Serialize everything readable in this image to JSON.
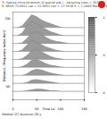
{
  "chart_data": {
    "type": "ridgeline",
    "title": "Tr. Sawica mine locations (4 special pat.) - sampling sites = 207",
    "subtitle": "R. KRUS 73.8911 Lat = 31.5051 Lon = 17.3516 S = 2.2889 Mstr. N2.6",
    "caption": "Median DT duration 26 s",
    "y_label": "Distance / Frequency Index (km)",
    "x_label": "Time (s)",
    "xlim": [
      0,
      150
    ],
    "xticks": [
      0,
      50,
      100,
      150
    ],
    "ylim": [
      0,
      11
    ],
    "color": "#9a9a9a",
    "annotations": [
      {
        "text": "SW",
        "y": 10.2
      },
      {
        "text": "NE",
        "y": 1.6
      }
    ],
    "x": [
      0,
      10,
      20,
      30,
      40,
      50,
      60,
      70,
      80,
      90,
      100,
      110,
      120,
      130,
      140,
      150
    ],
    "series": [
      {
        "offset": 9,
        "values": [
          0,
          0,
          0.2,
          0.9,
          1.6,
          1.4,
          1.0,
          0.7,
          0.5,
          0.3,
          0.1,
          0,
          0,
          0,
          0,
          0
        ]
      },
      {
        "offset": 8,
        "values": [
          0,
          0,
          0.3,
          1.2,
          1.8,
          1.5,
          1.1,
          0.8,
          0.5,
          0.3,
          0.1,
          0,
          0,
          0,
          0,
          0
        ]
      },
      {
        "offset": 7,
        "values": [
          0,
          0,
          0.1,
          0.6,
          1.3,
          1.5,
          1.2,
          0.8,
          0.5,
          0.3,
          0.2,
          0.1,
          0,
          0,
          0,
          0
        ]
      },
      {
        "offset": 6,
        "values": [
          0,
          0,
          0.2,
          0.8,
          1.4,
          1.2,
          0.9,
          0.6,
          0.4,
          0.2,
          0.1,
          0,
          0,
          0,
          0,
          0
        ]
      },
      {
        "offset": 5,
        "values": [
          0,
          0,
          0.1,
          0.5,
          1.1,
          1.3,
          1.0,
          0.7,
          0.4,
          0.2,
          0.1,
          0,
          0,
          0,
          0,
          0
        ]
      },
      {
        "offset": 4,
        "values": [
          0,
          0,
          0.1,
          0.4,
          0.9,
          1.0,
          0.8,
          0.5,
          0.3,
          0.2,
          0.1,
          0,
          0,
          0,
          0,
          0
        ]
      },
      {
        "offset": 3,
        "values": [
          0,
          0,
          0,
          0.2,
          0.6,
          0.8,
          0.7,
          0.5,
          0.3,
          0.2,
          0.1,
          0,
          0,
          0,
          0,
          0
        ]
      },
      {
        "offset": 2,
        "values": [
          0,
          0,
          0,
          0.1,
          0.4,
          0.5,
          0.4,
          0.3,
          0.2,
          0.1,
          0,
          0,
          0,
          0,
          0,
          0
        ]
      },
      {
        "offset": 1,
        "values": [
          0,
          0,
          0,
          0.1,
          0.2,
          0.3,
          0.3,
          0.2,
          0.1,
          0.1,
          0,
          0,
          0,
          0,
          0,
          0
        ]
      }
    ],
    "colorbar": {
      "range": [
        0,
        1000
      ],
      "ticks": [
        0,
        500,
        1000
      ]
    }
  }
}
